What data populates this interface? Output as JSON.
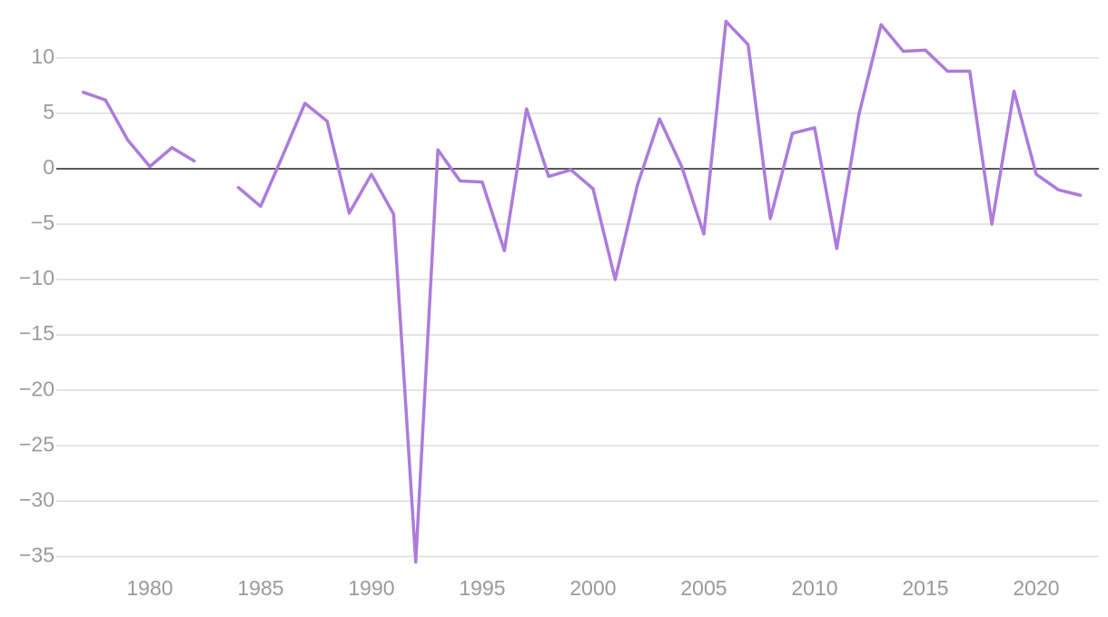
{
  "chart_data": {
    "type": "line",
    "x": [
      1977,
      1978,
      1979,
      1980,
      1981,
      1982,
      1983,
      1984,
      1985,
      1986,
      1987,
      1988,
      1989,
      1990,
      1991,
      1992,
      1993,
      1994,
      1995,
      1996,
      1997,
      1998,
      1999,
      2000,
      2001,
      2002,
      2003,
      2004,
      2005,
      2006,
      2007,
      2008,
      2009,
      2010,
      2011,
      2012,
      2013,
      2014,
      2015,
      2016,
      2017,
      2018,
      2019,
      2020,
      2021,
      2022
    ],
    "series": [
      {
        "color": "#ad7bdb",
        "values": [
          6.9,
          6.2,
          2.6,
          0.2,
          1.9,
          0.7,
          null,
          -1.7,
          -3.4,
          1.2,
          5.9,
          4.3,
          -4.0,
          -0.5,
          -4.1,
          -35.5,
          1.7,
          -1.1,
          -1.2,
          -7.4,
          5.4,
          -0.7,
          -0.1,
          -1.8,
          -10.0,
          -1.5,
          4.5,
          0.2,
          -5.9,
          13.3,
          11.2,
          -4.5,
          3.2,
          3.7,
          -7.2,
          4.9,
          13.0,
          10.6,
          10.7,
          8.8,
          8.8,
          -5.0,
          7.0,
          -0.5,
          -1.9,
          -2.4
        ]
      }
    ],
    "xlim": [
      1975.78,
      2022.83
    ],
    "xticks": [
      1980,
      1985,
      1990,
      1995,
      2000,
      2005,
      2010,
      2015,
      2020
    ],
    "ylim": [
      -36.2,
      14
    ],
    "yticks": [
      {
        "value": -35,
        "label": "−35"
      },
      {
        "value": -30,
        "label": "−30"
      },
      {
        "value": -25,
        "label": "−25"
      },
      {
        "value": -20,
        "label": "−20"
      },
      {
        "value": -15,
        "label": "−15"
      },
      {
        "value": -10,
        "label": "−10"
      },
      {
        "value": -5,
        "label": "−5"
      },
      0,
      5,
      10
    ],
    "grid": true
  }
}
